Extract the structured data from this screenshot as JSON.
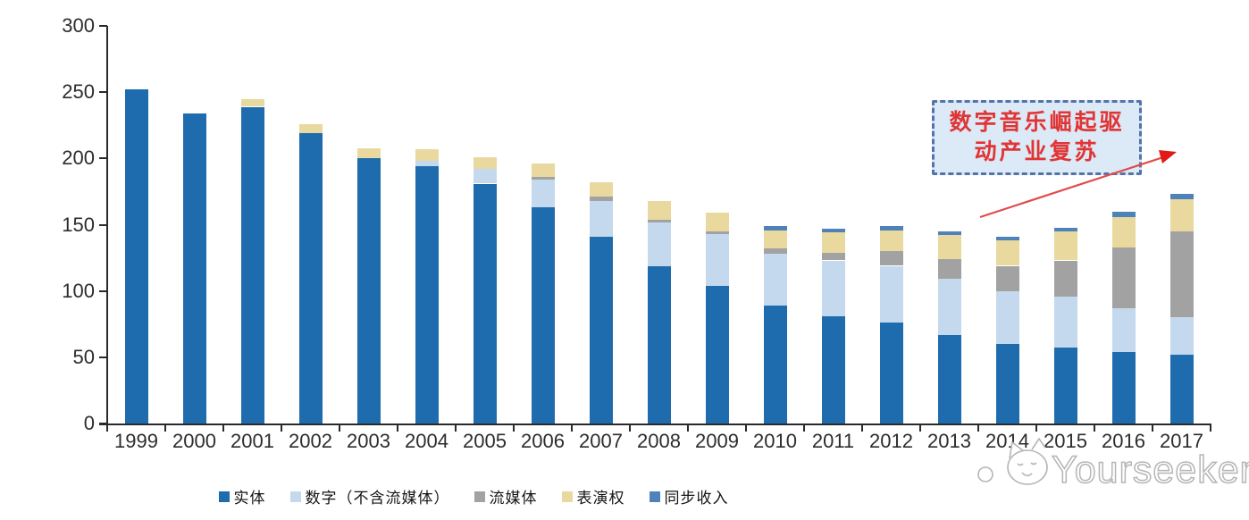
{
  "chart_data": {
    "type": "bar",
    "stacked": true,
    "title": "",
    "xlabel": "",
    "ylabel": "",
    "categories": [
      "1999",
      "2000",
      "2001",
      "2002",
      "2003",
      "2004",
      "2005",
      "2006",
      "2007",
      "2008",
      "2009",
      "2010",
      "2011",
      "2012",
      "2013",
      "2014",
      "2015",
      "2016",
      "2017"
    ],
    "series": [
      {
        "name": "实体",
        "color": "#1e6cad",
        "values": [
          252,
          234,
          239,
          219,
          200,
          194,
          181,
          163,
          141,
          119,
          104,
          89,
          81,
          76,
          67,
          60,
          57,
          54,
          52
        ]
      },
      {
        "name": "数字（不含流媒体）",
        "color": "#c4d9ee",
        "values": [
          0,
          0,
          0,
          0,
          0,
          4,
          11,
          21,
          27,
          33,
          39,
          39,
          42,
          43,
          42,
          40,
          39,
          33,
          28
        ]
      },
      {
        "name": "流媒体",
        "color": "#a2a2a2",
        "values": [
          0,
          0,
          0,
          0,
          0,
          0,
          0,
          2,
          3,
          2,
          2,
          4,
          6,
          11,
          15,
          19,
          27,
          46,
          65
        ]
      },
      {
        "name": "表演权",
        "color": "#e9d99e",
        "values": [
          0,
          0,
          6,
          7,
          8,
          9,
          9,
          10,
          11,
          14,
          14,
          14,
          15,
          16,
          18,
          19,
          22,
          23,
          24
        ]
      },
      {
        "name": "同步收入",
        "color": "#4d82bb",
        "values": [
          0,
          0,
          0,
          0,
          0,
          0,
          0,
          0,
          0,
          0,
          0,
          3,
          3,
          3,
          3,
          3,
          3,
          4,
          4
        ]
      }
    ],
    "ylim": [
      0,
      300
    ],
    "yticks": [
      "0",
      "50",
      "100",
      "150",
      "200",
      "250",
      "300"
    ],
    "legend_position": "bottom",
    "grid": false
  },
  "annotation": {
    "line1": "数字音乐崛起驱",
    "line2": "动产业复苏",
    "text_color": "#e13434",
    "box_fill": "#dce9f6",
    "box_border": "#5473a9",
    "arrow_color": "#e14b4b"
  },
  "watermark": {
    "text": "Yourseeker",
    "logo": "cat-face-logo",
    "color": "#b5b5b5"
  }
}
